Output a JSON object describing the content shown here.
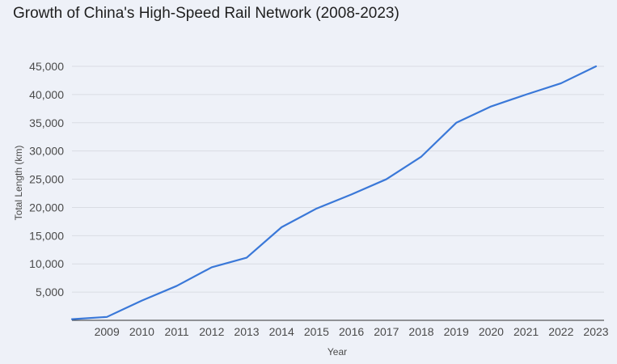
{
  "chart_data": {
    "type": "line",
    "title": "Growth of China's High-Speed Rail Network (2008-2023)",
    "xlabel": "Year",
    "ylabel": "Total Length (km)",
    "x": [
      2008,
      2009,
      2010,
      2011,
      2012,
      2013,
      2014,
      2015,
      2016,
      2017,
      2018,
      2019,
      2020,
      2021,
      2022,
      2023
    ],
    "x_tick_labels": [
      "2009",
      "2010",
      "2011",
      "2012",
      "2013",
      "2014",
      "2015",
      "2016",
      "2017",
      "2018",
      "2019",
      "2020",
      "2021",
      "2022",
      "2023"
    ],
    "y_ticks": [
      5000,
      10000,
      15000,
      20000,
      25000,
      30000,
      35000,
      40000,
      45000
    ],
    "y_tick_labels": [
      "5,000",
      "10,000",
      "15,000",
      "20,000",
      "25,000",
      "30,000",
      "35,000",
      "40,000",
      "45,000"
    ],
    "ylim": [
      0,
      45000
    ],
    "grid": true,
    "series": [
      {
        "values": [
          200,
          600,
          3500,
          6100,
          9400,
          11100,
          16500,
          19800,
          22300,
          25000,
          29000,
          35000,
          37900,
          40000,
          42000,
          45000
        ],
        "color": "#3a78d8"
      }
    ],
    "colors": {
      "background": "#eef1f8",
      "grid": "#d9dce3",
      "axis": "#333333"
    }
  }
}
